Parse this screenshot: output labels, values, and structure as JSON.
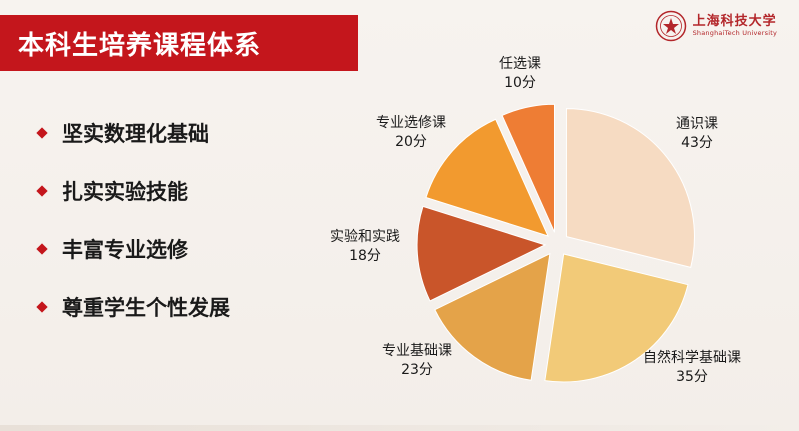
{
  "title": "本科生培养课程体系",
  "logo": {
    "name_cn": "上海科技大学",
    "name_en": "ShanghaiTech University",
    "accent": "#b3262a"
  },
  "bullets": [
    "坚实数理化基础",
    "扎实实验技能",
    "丰富专业选修",
    "尊重学生个性发展"
  ],
  "chart_data": {
    "type": "pie",
    "title": "",
    "unit": "分",
    "start": "top",
    "direction": "clockwise",
    "exploded": true,
    "slices": [
      {
        "label": "通识课",
        "value": 43,
        "value_text": "43分",
        "color": "#f6dbc2"
      },
      {
        "label": "自然科学基础课",
        "value": 35,
        "value_text": "35分",
        "color": "#f2ca78"
      },
      {
        "label": "专业基础课",
        "value": 23,
        "value_text": "23分",
        "color": "#e4a349"
      },
      {
        "label": "实验和实践",
        "value": 18,
        "value_text": "18分",
        "color": "#c9552a"
      },
      {
        "label": "专业选修课",
        "value": 20,
        "value_text": "20分",
        "color": "#f29a2f"
      },
      {
        "label": "任选课",
        "value": 10,
        "value_text": "10分",
        "color": "#ee7d34"
      }
    ]
  }
}
